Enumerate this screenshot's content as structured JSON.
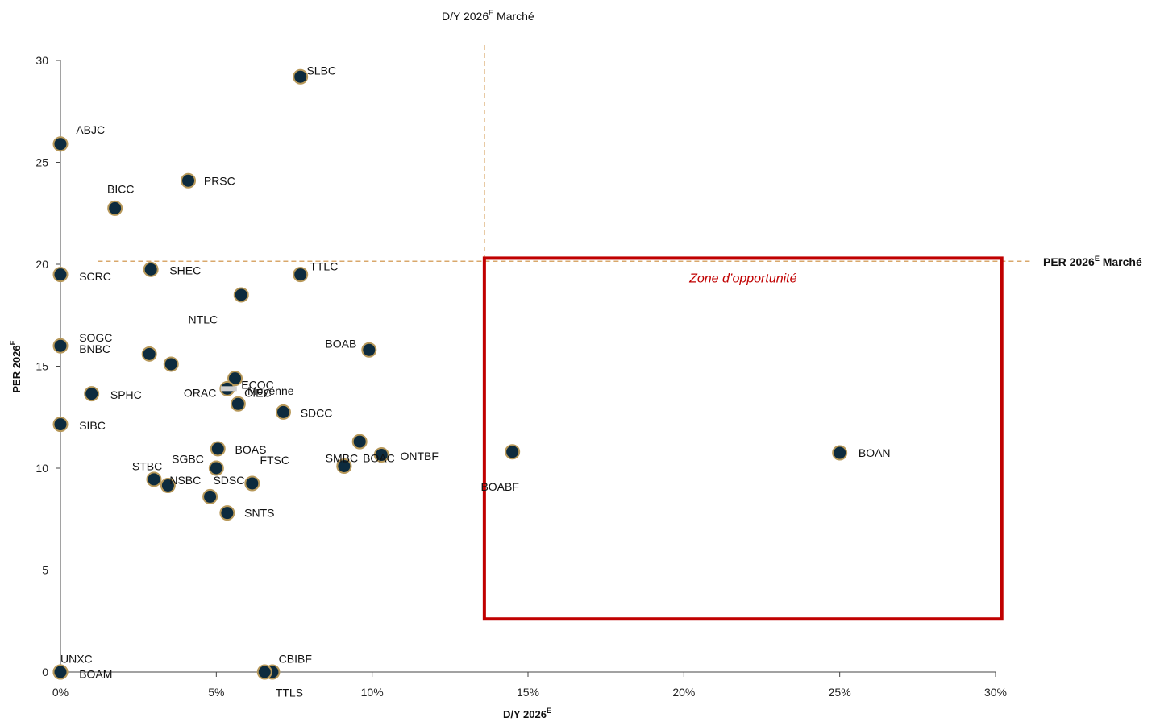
{
  "chart_data": {
    "type": "scatter",
    "xlabel": "D/Y 2026",
    "xlabel_sup": "E",
    "ylabel": "PER 2026",
    "ylabel_sup": "E",
    "xlim": [
      0,
      30
    ],
    "ylim": [
      0,
      30
    ],
    "x_ticks": [
      0,
      5,
      10,
      15,
      20,
      25,
      30
    ],
    "x_tick_labels": [
      "0%",
      "5%",
      "10%",
      "15%",
      "20%",
      "25%",
      "30%"
    ],
    "y_ticks": [
      0,
      5,
      10,
      15,
      20,
      25,
      30
    ],
    "y_tick_labels": [
      "0",
      "5",
      "10",
      "15",
      "20",
      "25",
      "30"
    ],
    "grid": false,
    "marker_fill": "#0d2b3e",
    "marker_edge": "#b8995a",
    "reference_color": "#d9a86c",
    "market_dy": {
      "value": 13.6,
      "label": "D/Y 2026",
      "label_sup": "E",
      "label_suffix": " Marché"
    },
    "market_per": {
      "value": 20.15,
      "label": "PER 2026",
      "label_sup": "E",
      "label_suffix": " Marché"
    },
    "opportunity_zone": {
      "x": [
        13.6,
        30.2
      ],
      "y": [
        2.6,
        20.3
      ],
      "label": "Zone d’opportunité",
      "color": "#c00000"
    },
    "points": [
      {
        "label": "SLBC",
        "x": 7.7,
        "y": 29.2,
        "lx": 7.9,
        "ly": 29.5,
        "anchor": "start"
      },
      {
        "label": "ABJC",
        "x": 0.0,
        "y": 25.9,
        "lx": 0.5,
        "ly": 26.6,
        "anchor": "start"
      },
      {
        "label": "PRSC",
        "x": 4.1,
        "y": 24.1,
        "lx": 4.6,
        "ly": 24.1,
        "anchor": "start"
      },
      {
        "label": "BICC",
        "x": 1.75,
        "y": 22.75,
        "lx": 1.5,
        "ly": 23.7,
        "anchor": "start"
      },
      {
        "label": "SCRC",
        "x": 0.0,
        "y": 19.5,
        "lx": 0.6,
        "ly": 19.4,
        "anchor": "start"
      },
      {
        "label": "SHEC",
        "x": 2.9,
        "y": 19.75,
        "lx": 3.5,
        "ly": 19.7,
        "anchor": "start"
      },
      {
        "label": "TTLC",
        "x": 7.7,
        "y": 19.5,
        "lx": 8.0,
        "ly": 19.9,
        "anchor": "start"
      },
      {
        "label": "NTLC",
        "x": 5.8,
        "y": 18.5,
        "lx": 4.1,
        "ly": 17.3,
        "anchor": "start"
      },
      {
        "label": "SOGC",
        "x": 0.0,
        "y": 16.0,
        "lx": 0.6,
        "ly": 16.4,
        "anchor": "start"
      },
      {
        "label": "BNBC",
        "x": 2.85,
        "y": 15.6,
        "lx": 0.6,
        "ly": 15.85,
        "anchor": "start"
      },
      {
        "label": "",
        "x": 3.55,
        "y": 15.1,
        "lx": 0,
        "ly": 0,
        "anchor": "start"
      },
      {
        "label": "BOAB",
        "x": 9.9,
        "y": 15.8,
        "lx": 9.5,
        "ly": 16.1,
        "anchor": "end"
      },
      {
        "label": "ECOC",
        "x": 5.6,
        "y": 14.4,
        "lx": 5.8,
        "ly": 14.1,
        "anchor": "start"
      },
      {
        "label": "SPHC",
        "x": 1.0,
        "y": 13.65,
        "lx": 1.6,
        "ly": 13.6,
        "anchor": "start"
      },
      {
        "label": "ORAC",
        "x": 5.35,
        "y": 13.9,
        "lx": 5.0,
        "ly": 13.7,
        "anchor": "end"
      },
      {
        "label": "CIEC",
        "x": 5.7,
        "y": 13.15,
        "lx": 5.9,
        "ly": 13.7,
        "anchor": "start"
      },
      {
        "label": "SDCC",
        "x": 7.15,
        "y": 12.75,
        "lx": 7.7,
        "ly": 12.7,
        "anchor": "start"
      },
      {
        "label": "SIBC",
        "x": 0.0,
        "y": 12.15,
        "lx": 0.6,
        "ly": 12.1,
        "anchor": "start"
      },
      {
        "label": "",
        "x": 9.6,
        "y": 11.3,
        "lx": 0,
        "ly": 0,
        "anchor": "start"
      },
      {
        "label": "ONTBF",
        "x": 10.3,
        "y": 10.65,
        "lx": 10.9,
        "ly": 10.6,
        "anchor": "start"
      },
      {
        "label": "BOAC",
        "x": 9.1,
        "y": 10.1,
        "lx": 9.7,
        "ly": 10.5,
        "anchor": "start"
      },
      {
        "label": "SMBC",
        "x": 9.1,
        "y": 10.1,
        "lx": 8.5,
        "ly": 10.5,
        "anchor": "start"
      },
      {
        "label": "BOAS",
        "x": 5.05,
        "y": 10.95,
        "lx": 5.6,
        "ly": 10.9,
        "anchor": "start"
      },
      {
        "label": "SGBC",
        "x": 5.0,
        "y": 10.0,
        "lx": 4.6,
        "ly": 10.45,
        "anchor": "end"
      },
      {
        "label": "FTSC",
        "x": 6.15,
        "y": 9.25,
        "lx": 6.4,
        "ly": 10.4,
        "anchor": "start"
      },
      {
        "label": "STBC",
        "x": 3.0,
        "y": 9.45,
        "lx": 2.3,
        "ly": 10.1,
        "anchor": "start"
      },
      {
        "label": "NSBC",
        "x": 3.45,
        "y": 9.15,
        "lx": 3.5,
        "ly": 9.4,
        "anchor": "start"
      },
      {
        "label": "SDSC",
        "x": 4.8,
        "y": 8.6,
        "lx": 4.9,
        "ly": 9.4,
        "anchor": "start"
      },
      {
        "label": "SNTS",
        "x": 5.35,
        "y": 7.8,
        "lx": 5.9,
        "ly": 7.8,
        "anchor": "start"
      },
      {
        "label": "BOABF",
        "x": 14.5,
        "y": 10.8,
        "lx": 14.1,
        "ly": 9.1,
        "anchor": "middle"
      },
      {
        "label": "BOAN",
        "x": 25.0,
        "y": 10.75,
        "lx": 25.6,
        "ly": 10.75,
        "anchor": "start"
      },
      {
        "label": "UNXC",
        "x": 0.0,
        "y": 0.0,
        "lx": 0.0,
        "ly": 0.65,
        "anchor": "start"
      },
      {
        "label": "BOAM",
        "x": 0.0,
        "y": 0.0,
        "lx": 0.6,
        "ly": -0.1,
        "anchor": "start"
      },
      {
        "label": "CBIBF",
        "x": 6.8,
        "y": 0.0,
        "lx": 7.0,
        "ly": 0.65,
        "anchor": "start"
      },
      {
        "label": "TTLS",
        "x": 6.55,
        "y": 0.0,
        "lx": 6.9,
        "ly": -1.0,
        "anchor": "start"
      }
    ],
    "mean_marker": {
      "label": "Moyenne",
      "x": 5.4,
      "y": 13.9,
      "lx": 6.0,
      "ly": 13.8,
      "fill": "#cfcfcf"
    }
  }
}
